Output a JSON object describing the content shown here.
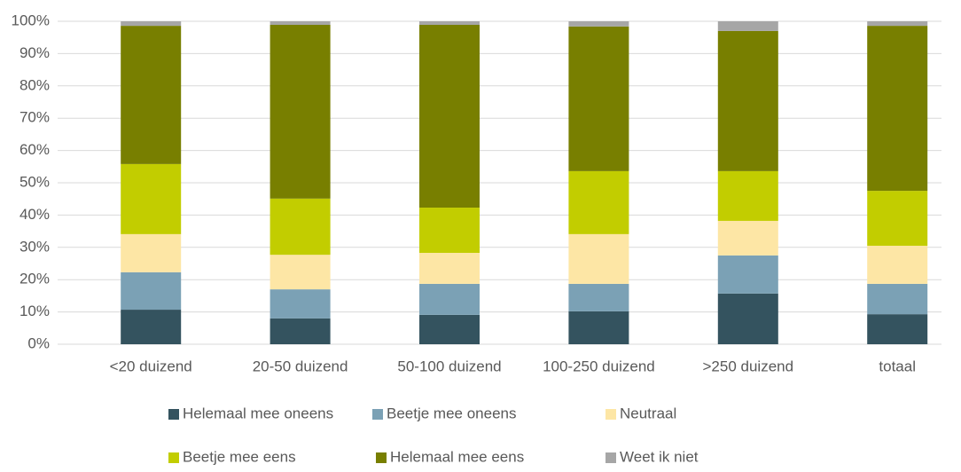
{
  "chart_data": {
    "type": "stacked_bar",
    "categories": [
      "<20 duizend",
      "20-50 duizend",
      "50-100 duizend",
      "100-250 duizend",
      ">250 duizend",
      "totaal"
    ],
    "series": [
      {
        "name": "Helemaal mee oneens",
        "color": "#34535f",
        "values": [
          10.7,
          8.0,
          9.1,
          10.2,
          15.7,
          9.3
        ]
      },
      {
        "name": "Beetje mee oneens",
        "color": "#7ba1b5",
        "values": [
          11.6,
          9.0,
          9.6,
          8.5,
          11.8,
          9.4
        ]
      },
      {
        "name": "Neutraal",
        "color": "#fde6a5",
        "values": [
          11.8,
          10.7,
          9.6,
          15.4,
          10.7,
          11.8
        ]
      },
      {
        "name": "Beetje mee eens",
        "color": "#c2cd00",
        "values": [
          21.7,
          17.4,
          14.0,
          19.5,
          15.4,
          17.0
        ]
      },
      {
        "name": "Helemaal mee eens",
        "color": "#787f00",
        "values": [
          42.8,
          53.8,
          56.6,
          44.8,
          43.4,
          51.1
        ]
      },
      {
        "name": "Weet ik niet",
        "color": "#a6a6a6",
        "values": [
          1.4,
          1.1,
          1.1,
          1.6,
          3.0,
          1.4
        ]
      }
    ],
    "ylim": [
      0,
      100
    ],
    "yticks": [
      {
        "value": 0,
        "label": "0%"
      },
      {
        "value": 10,
        "label": "10%"
      },
      {
        "value": 20,
        "label": "20%"
      },
      {
        "value": 30,
        "label": "30%"
      },
      {
        "value": 40,
        "label": "40%"
      },
      {
        "value": 50,
        "label": "50%"
      },
      {
        "value": 60,
        "label": "60%"
      },
      {
        "value": 70,
        "label": "70%"
      },
      {
        "value": 80,
        "label": "80%"
      },
      {
        "value": 90,
        "label": "90%"
      },
      {
        "value": 100,
        "label": "100%"
      }
    ],
    "grid": true,
    "legend": "bottom"
  }
}
